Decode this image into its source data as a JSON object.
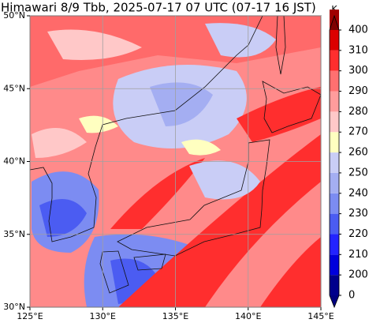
{
  "title": "Himawari 8/9 Tbb, 2025-07-17 07 UTC (07-17 16 JST)",
  "map": {
    "xlim": [
      125,
      145
    ],
    "ylim": [
      30,
      50
    ],
    "xticks": [
      {
        "value": 125,
        "label": "125°E"
      },
      {
        "value": 130,
        "label": "130°E"
      },
      {
        "value": 135,
        "label": "135°E"
      },
      {
        "value": 140,
        "label": "140°E"
      },
      {
        "value": 145,
        "label": "145°E"
      }
    ],
    "yticks": [
      {
        "value": 30,
        "label": "30°N"
      },
      {
        "value": 35,
        "label": "35°N"
      },
      {
        "value": 40,
        "label": "40°N"
      },
      {
        "value": 45,
        "label": "45°N"
      },
      {
        "value": 50,
        "label": "50°N"
      }
    ],
    "grid": true
  },
  "colorbar": {
    "unit": "K",
    "ticks": [
      0,
      200,
      210,
      220,
      230,
      240,
      250,
      260,
      270,
      280,
      290,
      300,
      310,
      400
    ],
    "colors": [
      "#00008c",
      "#0000dc",
      "#2323ff",
      "#4b5cf2",
      "#7c8cf2",
      "#a4aef2",
      "#c9cdf6",
      "#ffffc0",
      "#ffc8c8",
      "#ff9c9c",
      "#ff7070",
      "#ff2e2e",
      "#dc0000",
      "#a00000"
    ],
    "under_color": "#000080",
    "over_color": "#800000"
  }
}
